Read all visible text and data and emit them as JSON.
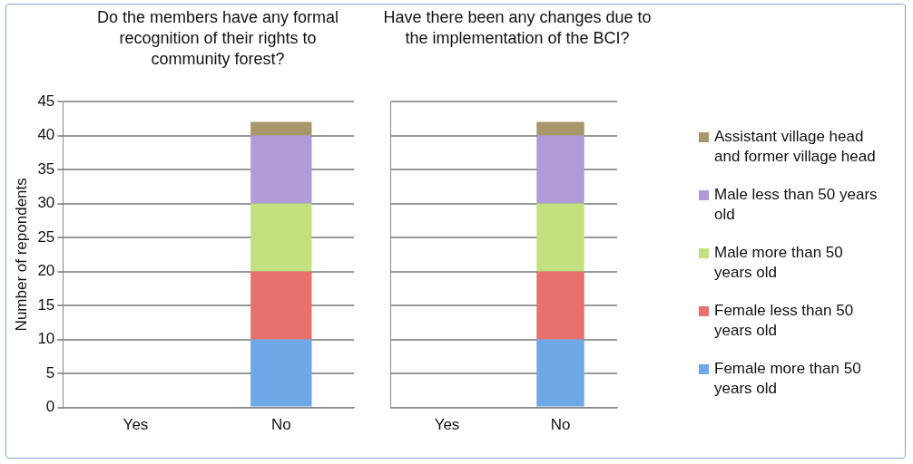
{
  "chart_data": [
    {
      "type": "bar",
      "title": "Do the members have any formal recognition of their rights to community forest?",
      "ylabel": "Number of repondents",
      "categories": [
        "Yes",
        "No"
      ],
      "stacked": true,
      "ylim": [
        0,
        45
      ],
      "yticks": [
        0,
        5,
        10,
        15,
        20,
        25,
        30,
        35,
        40,
        45
      ],
      "grid": "y",
      "legend": false,
      "series": [
        {
          "color": "#6fa8e6",
          "values": [
            0,
            10
          ]
        },
        {
          "color": "#e8716b",
          "values": [
            0,
            10
          ]
        },
        {
          "color": "#c3e07e",
          "values": [
            0,
            10
          ]
        },
        {
          "color": "#b09ad8",
          "values": [
            0,
            10
          ]
        },
        {
          "color": "#a8976a",
          "values": [
            0,
            2
          ]
        }
      ]
    },
    {
      "type": "bar",
      "title": "Have there been any changes due to the implementation of the BCI?",
      "categories": [
        "Yes",
        "No"
      ],
      "stacked": true,
      "ylim": [
        0,
        45
      ],
      "yticks": [
        0,
        5,
        10,
        15,
        20,
        25,
        30,
        35,
        40,
        45
      ],
      "grid": "y",
      "tick_labels": "x",
      "legend": "right",
      "series": [
        {
          "name": "Female more than 50 years old",
          "color": "#6fa8e6",
          "values": [
            0,
            10
          ]
        },
        {
          "name": "Female less than 50 years old",
          "color": "#e8716b",
          "values": [
            0,
            10
          ]
        },
        {
          "name": "Male more than 50 years old",
          "color": "#c3e07e",
          "values": [
            0,
            10
          ]
        },
        {
          "name": "Male less than 50 years old",
          "color": "#b09ad8",
          "values": [
            0,
            10
          ]
        },
        {
          "name": "Assistant village head and former village head",
          "color": "#a8976a",
          "values": [
            0,
            2
          ]
        }
      ]
    }
  ]
}
